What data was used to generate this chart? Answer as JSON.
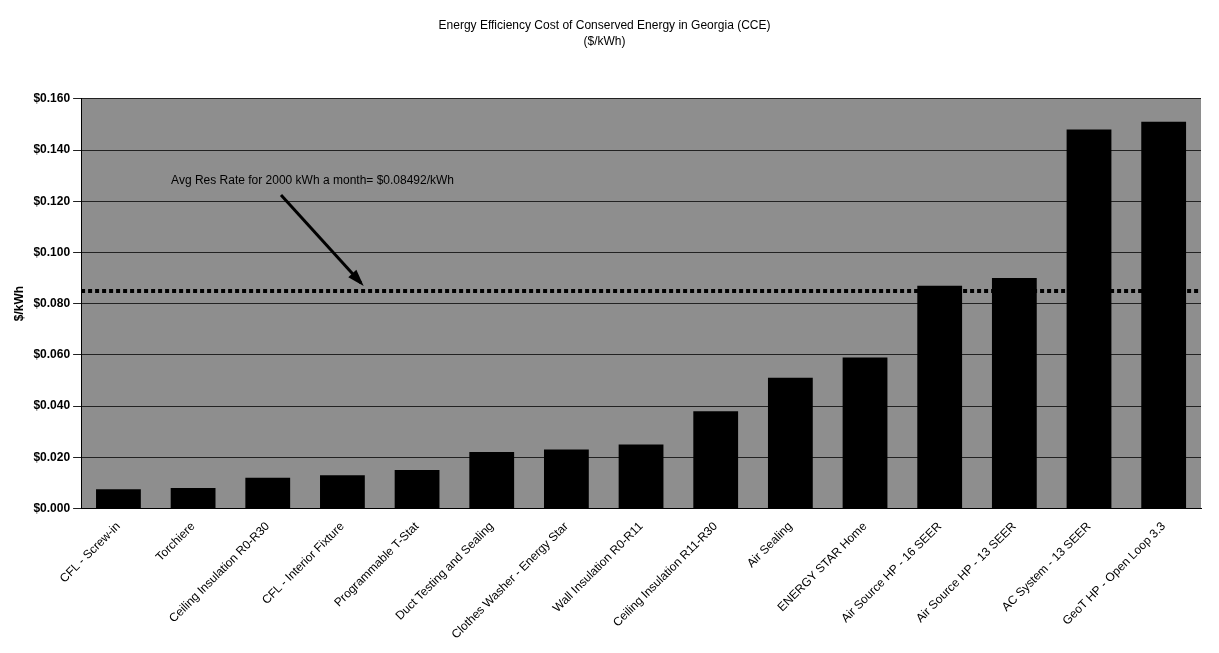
{
  "chart_data": {
    "type": "bar",
    "title": "Energy Efficiency Cost of Conserved Energy in Georgia (CCE)",
    "subtitle": "($/kWh)",
    "ylabel": "$/kWh",
    "categories": [
      "CFL - Screw-in",
      "Torchiere",
      "Ceiling Insulation R0-R30",
      "CFL - Interior Fixture",
      "Programmable T-Stat",
      "Duct Testing and Sealing",
      "Clothes Washer - Energy Star",
      "Wall Insulation R0-R11",
      "Ceiling Insulation R11-R30",
      "Air Sealing",
      "ENERGY STAR Home",
      "Air Source HP - 16 SEER",
      "Air Source HP - 13 SEER",
      "AC System - 13 SEER",
      "GeoT HP - Open Loop 3.3"
    ],
    "values": [
      0.0075,
      0.008,
      0.012,
      0.013,
      0.015,
      0.022,
      0.023,
      0.025,
      0.038,
      0.051,
      0.059,
      0.087,
      0.09,
      0.148,
      0.151
    ],
    "color": "#000000",
    "ylim": [
      0,
      0.16
    ],
    "yticks": [
      {
        "value": 0,
        "label": "$0.000"
      },
      {
        "value": 0.02,
        "label": "$0.020"
      },
      {
        "value": 0.04,
        "label": "$0.040"
      },
      {
        "value": 0.06,
        "label": "$0.060"
      },
      {
        "value": 0.08,
        "label": "$0.080"
      },
      {
        "value": 0.1,
        "label": "$0.100"
      },
      {
        "value": 0.12,
        "label": "$0.120"
      },
      {
        "value": 0.14,
        "label": "$0.140"
      },
      {
        "value": 0.16,
        "label": "$0.160"
      }
    ],
    "grid": "y",
    "legend": false,
    "ref_lines": [
      {
        "axis": "y",
        "value": 0.08492,
        "label": "Avg Res Rate for 2000 kWh a month= $0.08492/kWh",
        "color": "#000000",
        "line_style": "dotted"
      }
    ]
  }
}
